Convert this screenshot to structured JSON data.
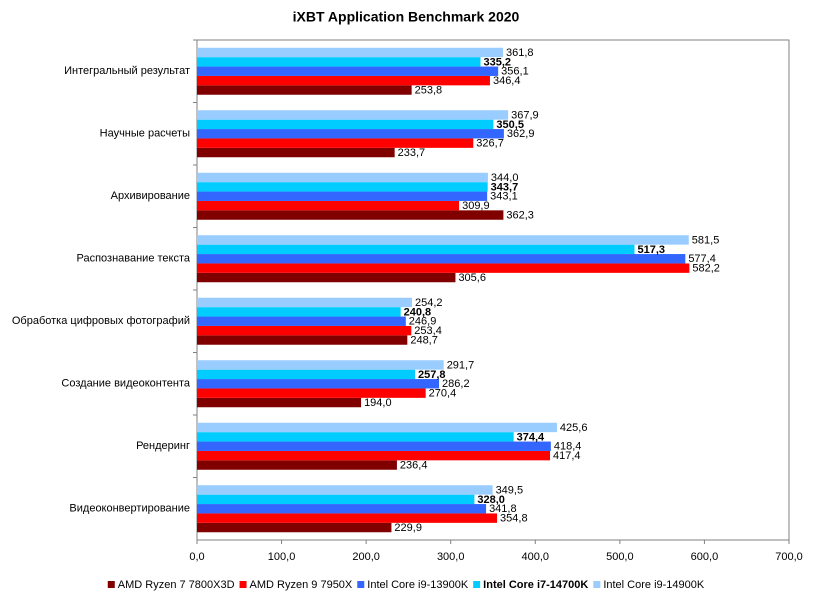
{
  "chart_data": {
    "type": "hbar",
    "title": "iXBT Application Benchmark 2020",
    "categories": [
      "Интегральный результат",
      "Научные расчеты",
      "Архивирование",
      "Распознавание текста",
      "Обработка цифровых фотографий",
      "Создание видеоконтента",
      "Рендеринг",
      "Видеоконвертирование"
    ],
    "series": [
      {
        "name": "AMD Ryzen 7  7800X3D",
        "color": "#800000",
        "values": [
          253.8,
          233.7,
          362.3,
          305.6,
          248.7,
          194.0,
          236.4,
          229.9
        ],
        "value_labels": [
          "253,8",
          "233,7",
          "362,3",
          "305,6",
          "248,7",
          "194,0",
          "236,4",
          "229,9"
        ]
      },
      {
        "name": "AMD Ryzen 9 7950X",
        "color": "#ff0000",
        "values": [
          346.4,
          326.7,
          309.9,
          582.2,
          253.4,
          270.4,
          417.4,
          354.8
        ],
        "value_labels": [
          "346,4",
          "326,7",
          "309,9",
          "582,2",
          "253,4",
          "270,4",
          "417,4",
          "354,8"
        ]
      },
      {
        "name": "Intel Core i9-13900K",
        "color": "#3366ff",
        "values": [
          356.1,
          362.9,
          343.1,
          577.4,
          246.9,
          286.2,
          418.4,
          341.8
        ],
        "value_labels": [
          "356,1",
          "362,9",
          "343,1",
          "577,4",
          "246,9",
          "286,2",
          "418,4",
          "341,8"
        ]
      },
      {
        "name": "Intel Core i7-14700K",
        "color": "#00ccff",
        "bold": true,
        "values": [
          335.2,
          350.5,
          343.7,
          517.3,
          240.8,
          257.8,
          374.4,
          328.0
        ],
        "value_labels": [
          "335,2",
          "350,5",
          "343,7",
          "517,3",
          "240,8",
          "257,8",
          "374,4",
          "328,0"
        ]
      },
      {
        "name": "Intel Core i9-14900K",
        "color": "#99ccff",
        "values": [
          361.8,
          367.9,
          344.0,
          581.5,
          254.2,
          291.7,
          425.6,
          349.5
        ],
        "value_labels": [
          "361,8",
          "367,9",
          "344,0",
          "581,5",
          "254,2",
          "291,7",
          "425,6",
          "349,5"
        ]
      }
    ],
    "xlim": [
      0,
      700
    ],
    "xticks": [
      {
        "value": 0,
        "label": "0,0"
      },
      {
        "value": 100,
        "label": "100,0"
      },
      {
        "value": 200,
        "label": "200,0"
      },
      {
        "value": 300,
        "label": "300,0"
      },
      {
        "value": 400,
        "label": "400,0"
      },
      {
        "value": 500,
        "label": "500,0"
      },
      {
        "value": 600,
        "label": "600,0"
      },
      {
        "value": 700,
        "label": "700,0"
      }
    ],
    "grid": false,
    "legend": "bottom"
  }
}
